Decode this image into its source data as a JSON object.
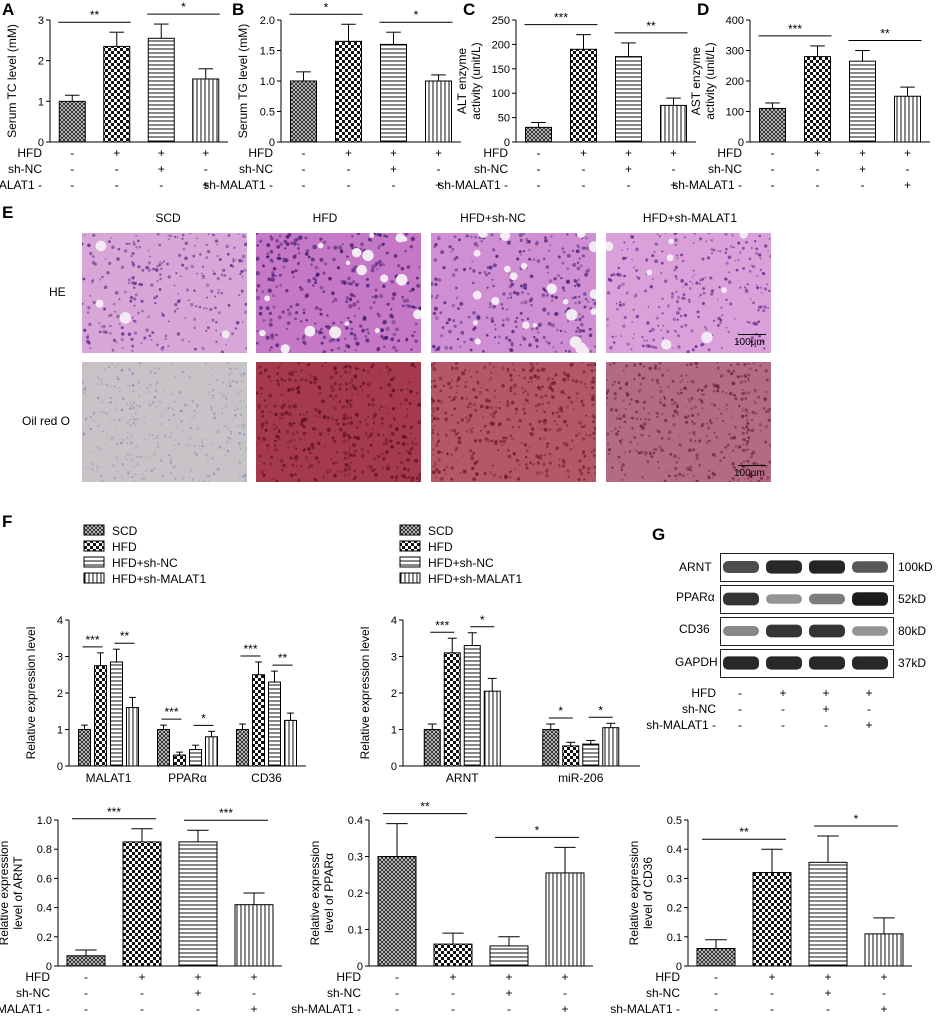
{
  "panel_labels": {
    "A": "A",
    "B": "B",
    "C": "C",
    "D": "D",
    "E": "E",
    "F": "F",
    "G": "G"
  },
  "conditions": {
    "row_labels": [
      "HFD",
      "sh-NC",
      "sh-MALAT1 -"
    ],
    "signs": [
      [
        "-",
        "+",
        "+",
        "+"
      ],
      [
        "-",
        "-",
        "+",
        "-"
      ],
      [
        "-",
        "-",
        "-",
        "+"
      ]
    ]
  },
  "legend": [
    "SCD",
    "HFD",
    "HFD+sh-NC",
    "HFD+sh-MALAT1"
  ],
  "histology": {
    "column_titles": [
      "SCD",
      "HFD",
      "HFD+sh-NC",
      "HFD+sh-MALAT1"
    ],
    "row_titles": [
      "HE",
      "Oil red O"
    ],
    "scale_bar": "100μm",
    "he_colors": [
      "#d9a6d8",
      "#c478c6",
      "#cf8fd2",
      "#d9a0da"
    ],
    "oil_colors": [
      "#c9c3c8",
      "#a63a4d",
      "#b35869",
      "#b36b84"
    ]
  },
  "western": {
    "bands": [
      {
        "name": "ARNT",
        "size": "100kD",
        "intensity": [
          0.75,
          0.9,
          0.92,
          0.7
        ]
      },
      {
        "name": "PPARα",
        "size": "52kD",
        "intensity": [
          0.85,
          0.45,
          0.55,
          0.95
        ]
      },
      {
        "name": "CD36",
        "size": "80kD",
        "intensity": [
          0.5,
          0.85,
          0.85,
          0.45
        ]
      },
      {
        "name": "GAPDH",
        "size": "37kD",
        "intensity": [
          0.9,
          0.9,
          0.9,
          0.9
        ]
      }
    ]
  },
  "chart_data": [
    {
      "id": "A",
      "type": "bar",
      "ylabel": "Serum TC level (mM)",
      "ylim": [
        0,
        3
      ],
      "yticks": [
        "0",
        "1",
        "2",
        "3"
      ],
      "values": [
        1.0,
        2.35,
        2.55,
        1.55
      ],
      "errors": [
        0.15,
        0.35,
        0.35,
        0.25
      ],
      "sig": [
        {
          "from": 0,
          "to": 1,
          "text": "**"
        },
        {
          "from": 2,
          "to": 3,
          "text": "*"
        }
      ]
    },
    {
      "id": "B",
      "type": "bar",
      "ylabel": "Serum TG level (mM)",
      "ylim": [
        0,
        2
      ],
      "yticks": [
        "0",
        "0.5",
        "1.0",
        "1.5",
        "2.0"
      ],
      "values": [
        1.0,
        1.65,
        1.6,
        1.0
      ],
      "errors": [
        0.15,
        0.28,
        0.2,
        0.1
      ],
      "sig": [
        {
          "from": 0,
          "to": 1,
          "text": "*"
        },
        {
          "from": 2,
          "to": 3,
          "text": "*"
        }
      ]
    },
    {
      "id": "C",
      "type": "bar",
      "ylabel": [
        "ALT enzyme",
        "activity (unit/L)"
      ],
      "ylim": [
        0,
        250
      ],
      "yticks": [
        "0",
        "50",
        "100",
        "150",
        "200",
        "250"
      ],
      "values": [
        30,
        190,
        175,
        75
      ],
      "errors": [
        10,
        30,
        28,
        15
      ],
      "sig": [
        {
          "from": 0,
          "to": 1,
          "text": "***"
        },
        {
          "from": 2,
          "to": 3,
          "text": "**"
        }
      ]
    },
    {
      "id": "D",
      "type": "bar",
      "ylabel": [
        "AST enzyme",
        "activity (unit/L)"
      ],
      "ylim": [
        0,
        400
      ],
      "yticks": [
        "0",
        "100",
        "200",
        "300",
        "400"
      ],
      "values": [
        110,
        280,
        265,
        150
      ],
      "errors": [
        18,
        35,
        35,
        30
      ],
      "sig": [
        {
          "from": 0,
          "to": 1,
          "text": "***"
        },
        {
          "from": 2,
          "to": 3,
          "text": "**"
        }
      ]
    },
    {
      "id": "F1",
      "type": "bar",
      "ylabel": "Relative expression level",
      "ylim": [
        0,
        4
      ],
      "yticks": [
        "0",
        "1",
        "2",
        "3",
        "4"
      ],
      "categories": [
        "MALAT1",
        "PPARα",
        "CD36"
      ],
      "series": [
        {
          "name": "SCD",
          "values": [
            1.0,
            1.0,
            1.0
          ],
          "errors": [
            0.12,
            0.12,
            0.15
          ]
        },
        {
          "name": "HFD",
          "values": [
            2.75,
            0.3,
            2.5
          ],
          "errors": [
            0.35,
            0.08,
            0.35
          ]
        },
        {
          "name": "HFD+sh-NC",
          "values": [
            2.85,
            0.45,
            2.3
          ],
          "errors": [
            0.35,
            0.12,
            0.3
          ]
        },
        {
          "name": "HFD+sh-MALAT1",
          "values": [
            1.6,
            0.8,
            1.25
          ],
          "errors": [
            0.28,
            0.15,
            0.2
          ]
        }
      ],
      "sig": [
        {
          "group": 0,
          "from": 0,
          "to": 1,
          "text": "***"
        },
        {
          "group": 0,
          "from": 2,
          "to": 3,
          "text": "**"
        },
        {
          "group": 1,
          "from": 0,
          "to": 1,
          "text": "***"
        },
        {
          "group": 1,
          "from": 2,
          "to": 3,
          "text": "*"
        },
        {
          "group": 2,
          "from": 0,
          "to": 1,
          "text": "***"
        },
        {
          "group": 2,
          "from": 2,
          "to": 3,
          "text": "**"
        }
      ]
    },
    {
      "id": "F2",
      "type": "bar",
      "ylabel": "Relative expression level",
      "ylim": [
        0,
        4
      ],
      "yticks": [
        "0",
        "1",
        "2",
        "3",
        "4"
      ],
      "categories": [
        "ARNT",
        "miR-206"
      ],
      "series": [
        {
          "name": "SCD",
          "values": [
            1.0,
            1.0
          ],
          "errors": [
            0.15,
            0.15
          ]
        },
        {
          "name": "HFD",
          "values": [
            3.1,
            0.55
          ],
          "errors": [
            0.4,
            0.1
          ]
        },
        {
          "name": "HFD+sh-NC",
          "values": [
            3.3,
            0.6
          ],
          "errors": [
            0.35,
            0.1
          ]
        },
        {
          "name": "HFD+sh-MALAT1",
          "values": [
            2.05,
            1.05
          ],
          "errors": [
            0.35,
            0.12
          ]
        }
      ],
      "sig": [
        {
          "group": 0,
          "from": 0,
          "to": 1,
          "text": "***"
        },
        {
          "group": 0,
          "from": 2,
          "to": 3,
          "text": "*"
        },
        {
          "group": 1,
          "from": 0,
          "to": 1,
          "text": "*"
        },
        {
          "group": 1,
          "from": 2,
          "to": 3,
          "text": "*"
        }
      ]
    },
    {
      "id": "F3",
      "type": "bar",
      "ylabel": [
        "Relative expression",
        "level of ARNT"
      ],
      "ylim": [
        0,
        1
      ],
      "yticks": [
        "0",
        "0.2",
        "0.4",
        "0.6",
        "0.8",
        "1.0"
      ],
      "values": [
        0.07,
        0.85,
        0.85,
        0.42
      ],
      "errors": [
        0.04,
        0.09,
        0.08,
        0.08
      ],
      "sig": [
        {
          "from": 0,
          "to": 1,
          "text": "***"
        },
        {
          "from": 2,
          "to": 3,
          "text": "***"
        }
      ]
    },
    {
      "id": "F4",
      "type": "bar",
      "ylabel": [
        "Relative expression",
        "level of PPARα"
      ],
      "ylim": [
        0,
        0.4
      ],
      "yticks": [
        "0",
        "0.1",
        "0.2",
        "0.3",
        "0.4"
      ],
      "values": [
        0.3,
        0.06,
        0.055,
        0.255
      ],
      "errors": [
        0.09,
        0.03,
        0.025,
        0.07
      ],
      "sig": [
        {
          "from": 0,
          "to": 1,
          "text": "**"
        },
        {
          "from": 2,
          "to": 3,
          "text": "*"
        }
      ]
    },
    {
      "id": "G2",
      "type": "bar",
      "ylabel": [
        "Relative expression",
        "level of CD36"
      ],
      "ylim": [
        0,
        0.5
      ],
      "yticks": [
        "0",
        "0.1",
        "0.2",
        "0.3",
        "0.4",
        "0.5"
      ],
      "values": [
        0.06,
        0.32,
        0.355,
        0.11
      ],
      "errors": [
        0.03,
        0.08,
        0.09,
        0.055
      ],
      "sig": [
        {
          "from": 0,
          "to": 1,
          "text": "**"
        },
        {
          "from": 2,
          "to": 3,
          "text": "*"
        }
      ]
    }
  ]
}
